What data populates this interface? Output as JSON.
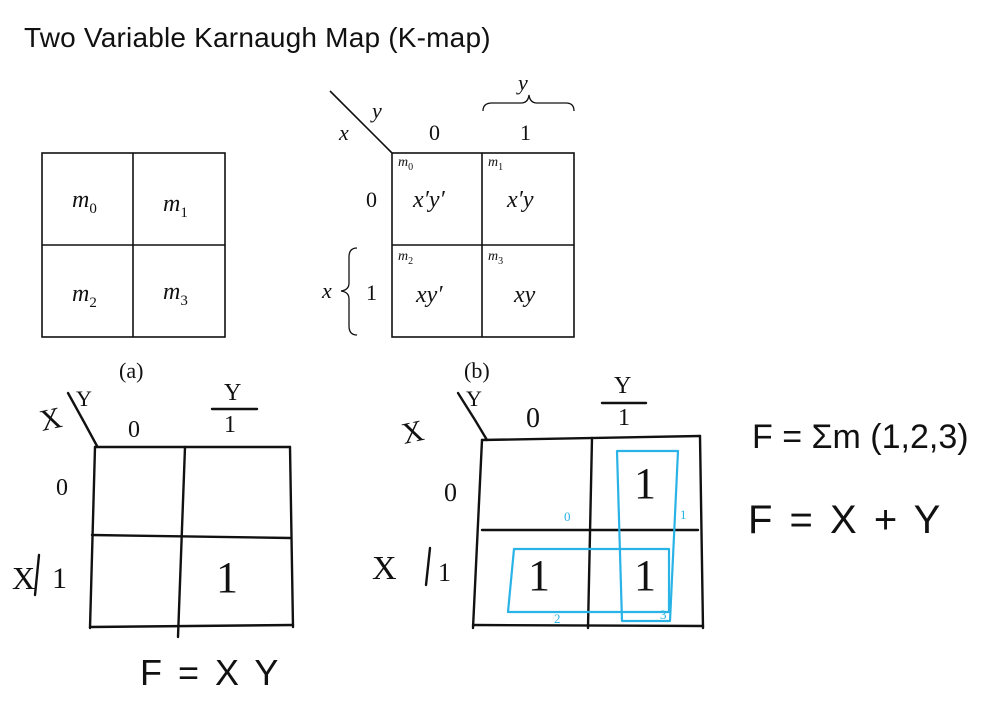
{
  "title": "Two Variable Karnaugh Map (K-map)",
  "figure_a": {
    "caption": "(a)",
    "cells": [
      {
        "var": "m",
        "sub": "0"
      },
      {
        "var": "m",
        "sub": "1"
      },
      {
        "var": "m",
        "sub": "2"
      },
      {
        "var": "m",
        "sub": "3"
      }
    ]
  },
  "figure_b": {
    "caption": "(b)",
    "row_var": "x",
    "col_var": "y",
    "col_headers": [
      "0",
      "1"
    ],
    "row_headers": [
      "0",
      "1"
    ],
    "cells": [
      {
        "minterm_var": "m",
        "minterm_sub": "0",
        "expr": "x′y′"
      },
      {
        "minterm_var": "m",
        "minterm_sub": "1",
        "expr": "x′y"
      },
      {
        "minterm_var": "m",
        "minterm_sub": "2",
        "expr": "xy′"
      },
      {
        "minterm_var": "m",
        "minterm_sub": "3",
        "expr": "xy"
      }
    ]
  },
  "handwritten_left": {
    "row_var": "X",
    "col_var": "Y",
    "col_headers": [
      "0",
      "1"
    ],
    "row_headers": [
      "0",
      "1"
    ],
    "cell_values": [
      "",
      "",
      "",
      "1"
    ],
    "result": "F = X Y"
  },
  "handwritten_right": {
    "row_var": "X",
    "col_var": "Y",
    "col_headers": [
      "0",
      "1"
    ],
    "row_headers": [
      "0",
      "1"
    ],
    "cell_values": [
      "",
      "1",
      "1",
      "1"
    ],
    "cell_indices": [
      "0",
      "1",
      "2",
      "3"
    ],
    "equation_1": "F = Σm (1,2,3)",
    "equation_2": "F = X + Y"
  },
  "colors": {
    "ink": "#111111",
    "highlight": "#29b3e6"
  }
}
